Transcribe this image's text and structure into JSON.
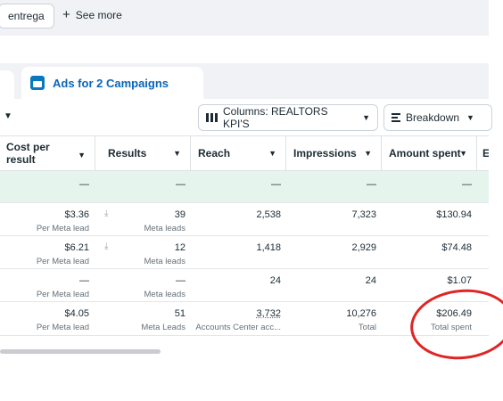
{
  "topbar": {
    "chip": "entrega",
    "see_more": "See more"
  },
  "tabs": {
    "active": "Ads for 2 Campaigns"
  },
  "toolbar": {
    "columns": "Columns: REALTORS KPI'S",
    "breakdown": "Breakdown"
  },
  "columns": {
    "cost_per_result": "Cost per result",
    "results": "Results",
    "reach": "Reach",
    "impressions": "Impressions",
    "amount_spent": "Amount spent",
    "next": "E"
  },
  "rows": [
    {
      "cost": "—",
      "cost_sub": "",
      "results": "—",
      "results_sub": "",
      "reach": "—",
      "reach_sub": "",
      "impressions": "—",
      "impressions_sub": "",
      "spent": "—",
      "spent_sub": ""
    },
    {
      "cost": "$3.36",
      "cost_sub": "Per Meta lead",
      "results": "39",
      "results_sub": "Meta leads",
      "reach": "2,538",
      "reach_sub": "",
      "impressions": "7,323",
      "impressions_sub": "",
      "spent": "$130.94",
      "spent_sub": ""
    },
    {
      "cost": "$6.21",
      "cost_sub": "Per Meta lead",
      "results": "12",
      "results_sub": "Meta leads",
      "reach": "1,418",
      "reach_sub": "",
      "impressions": "2,929",
      "impressions_sub": "",
      "spent": "$74.48",
      "spent_sub": ""
    },
    {
      "cost": "—",
      "cost_sub": "Per Meta lead",
      "results": "—",
      "results_sub": "Meta leads",
      "reach": "24",
      "reach_sub": "",
      "impressions": "24",
      "impressions_sub": "",
      "spent": "$1.07",
      "spent_sub": ""
    },
    {
      "cost": "$4.05",
      "cost_sub": "Per Meta lead",
      "results": "51",
      "results_sub": "Meta Leads",
      "reach": "3,732",
      "reach_sub": "Accounts Center acc...",
      "impressions": "10,276",
      "impressions_sub": "Total",
      "spent": "$206.49",
      "spent_sub": "Total spent"
    }
  ],
  "colors": {
    "accent": "#0a66b8",
    "highlight_circle": "#e02424",
    "row_highlight": "#e6f4ee"
  }
}
